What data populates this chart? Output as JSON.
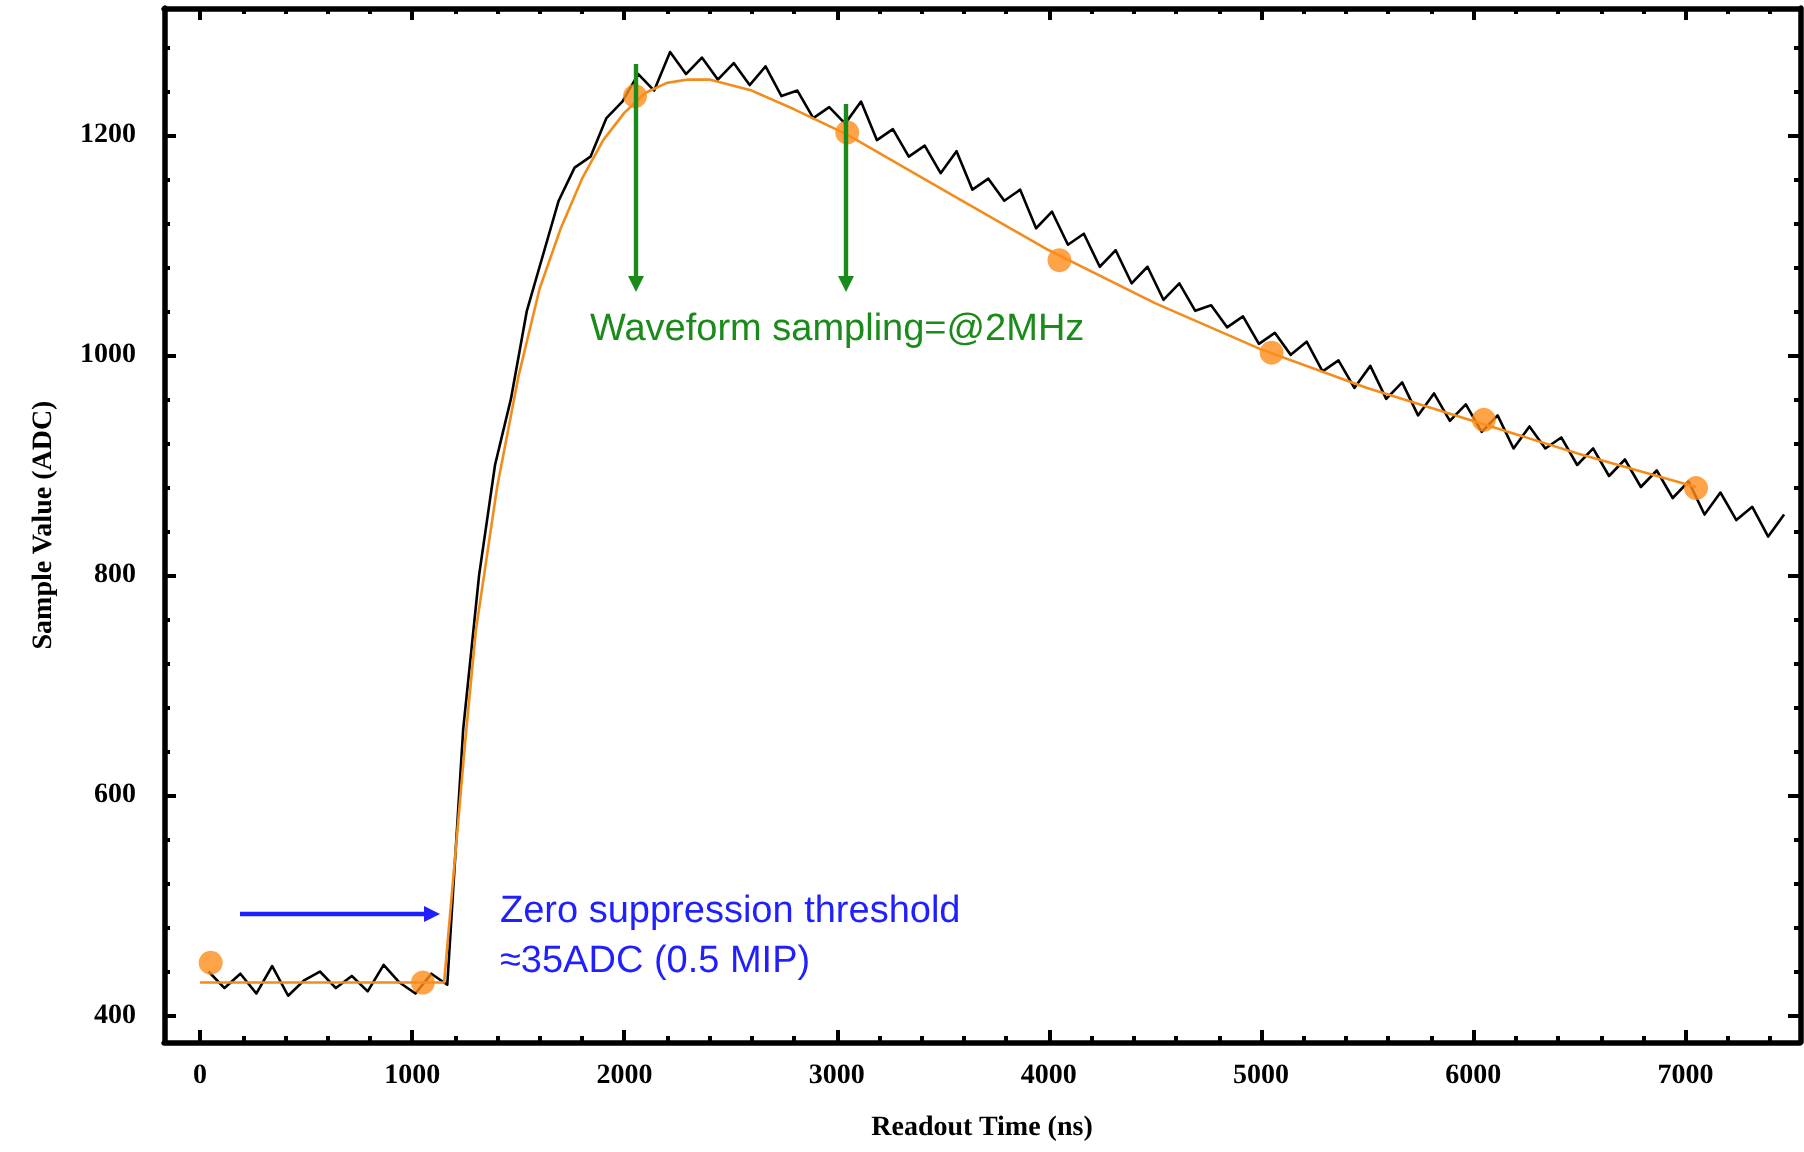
{
  "chart_data": {
    "type": "line",
    "xlabel": "Readout Time (ns)",
    "ylabel": "Sample Value (ADC)",
    "xlim": [
      -170,
      7540
    ],
    "ylim": [
      376,
      1315
    ],
    "xticks": [
      0,
      1000,
      2000,
      3000,
      4000,
      5000,
      6000,
      7000
    ],
    "yticks": [
      400,
      600,
      800,
      1000,
      1200
    ],
    "grid": false,
    "series": [
      {
        "color": "#000000",
        "marker": "none",
        "x": [
          40,
          115,
          190,
          265,
          340,
          415,
          490,
          565,
          640,
          715,
          790,
          865,
          940,
          1015,
          1090,
          1165,
          1240,
          1315,
          1390,
          1465,
          1540,
          1615,
          1690,
          1765,
          1840,
          1915,
          1990,
          2065,
          2140,
          2215,
          2290,
          2365,
          2440,
          2515,
          2590,
          2665,
          2740,
          2815,
          2890,
          2965,
          3040,
          3115,
          3190,
          3265,
          3340,
          3415,
          3490,
          3565,
          3640,
          3715,
          3790,
          3865,
          3940,
          4015,
          4090,
          4165,
          4240,
          4315,
          4390,
          4465,
          4540,
          4615,
          4690,
          4765,
          4840,
          4915,
          4990,
          5065,
          5140,
          5215,
          5290,
          5365,
          5440,
          5515,
          5590,
          5665,
          5740,
          5815,
          5890,
          5965,
          6040,
          6115,
          6190,
          6265,
          6340,
          6415,
          6490,
          6565,
          6640,
          6715,
          6790,
          6865,
          6940,
          7015,
          7090,
          7165,
          7240,
          7315,
          7390,
          7465
        ],
        "values": [
          440,
          425,
          438,
          420,
          445,
          418,
          432,
          440,
          425,
          436,
          422,
          446,
          430,
          420,
          438,
          428,
          660,
          800,
          900,
          960,
          1040,
          1090,
          1140,
          1170,
          1180,
          1215,
          1230,
          1255,
          1240,
          1275,
          1255,
          1270,
          1250,
          1265,
          1245,
          1262,
          1235,
          1240,
          1215,
          1225,
          1210,
          1230,
          1195,
          1205,
          1180,
          1190,
          1165,
          1185,
          1150,
          1160,
          1140,
          1150,
          1115,
          1130,
          1100,
          1110,
          1080,
          1095,
          1065,
          1080,
          1050,
          1065,
          1040,
          1045,
          1025,
          1035,
          1010,
          1020,
          1000,
          1012,
          985,
          995,
          970,
          990,
          960,
          975,
          945,
          965,
          940,
          955,
          930,
          945,
          915,
          935,
          915,
          925,
          900,
          915,
          890,
          905,
          880,
          895,
          870,
          885,
          855,
          875,
          850,
          862,
          835,
          855
        ]
      },
      {
        "color": "#f28c1c",
        "marker": "none",
        "x": [
          0,
          1150,
          1200,
          1250,
          1300,
          1400,
          1500,
          1600,
          1700,
          1800,
          1900,
          2000,
          2100,
          2200,
          2300,
          2400,
          2600,
          2800,
          3050,
          3500,
          4000,
          4500,
          5000,
          5500,
          6000,
          6500,
          7050
        ],
        "values": [
          430,
          430,
          540,
          650,
          750,
          880,
          980,
          1060,
          1115,
          1160,
          1195,
          1220,
          1238,
          1247,
          1250,
          1250,
          1240,
          1223,
          1200,
          1150,
          1095,
          1047,
          1005,
          970,
          940,
          910,
          880
        ]
      },
      {
        "type": "scatter",
        "color": "#ff8c1a",
        "marker": "circle",
        "x": [
          50,
          1050,
          2050,
          3050,
          4050,
          5050,
          6050,
          7050
        ],
        "values": [
          448,
          430,
          1235,
          1202,
          1086,
          1002,
          941,
          879
        ]
      }
    ],
    "annotations": [
      "Waveform sampling=@2MHz",
      "Zero suppression threshold\n≈35ADC (0.5 MIP)"
    ]
  }
}
